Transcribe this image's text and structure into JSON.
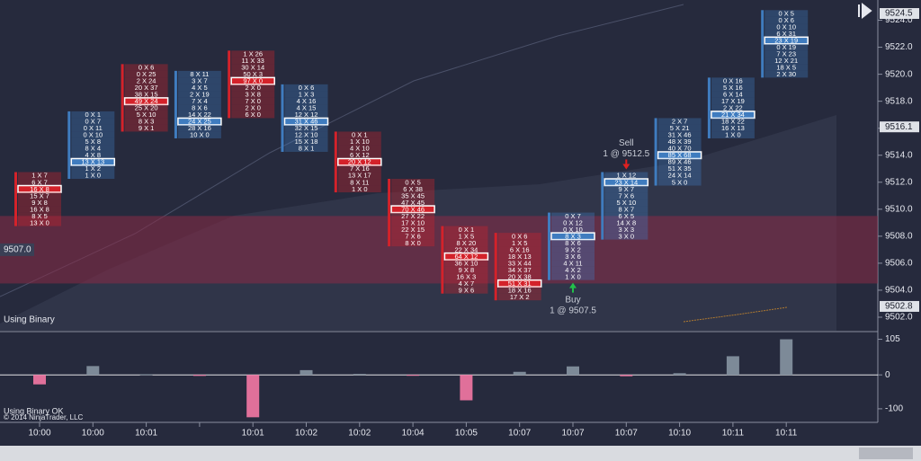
{
  "chart_data": {
    "type": "footprint",
    "ylim": [
      9501,
      9525.5
    ],
    "yticks": [
      {
        "value": 9502,
        "label": "9502.0"
      },
      {
        "value": 9504,
        "label": "9504.0"
      },
      {
        "value": 9506,
        "label": "9506.0"
      },
      {
        "value": 9508,
        "label": "9508.0"
      },
      {
        "value": 9510,
        "label": "9510.0"
      },
      {
        "value": 9512,
        "label": "9512.0"
      },
      {
        "value": 9514,
        "label": "9514.0"
      },
      {
        "value": 9516,
        "label": "9516.0"
      },
      {
        "value": 9518,
        "label": "9518.0"
      },
      {
        "value": 9520,
        "label": "9520.0"
      },
      {
        "value": 9522,
        "label": "9522.0"
      },
      {
        "value": 9524,
        "label": "9524.0"
      }
    ],
    "price_markers": [
      {
        "value": 9524.5,
        "label": "9524.5"
      },
      {
        "value": 9516.1,
        "label": "9516.1"
      },
      {
        "value": 9502.8,
        "label": "9502.8"
      }
    ],
    "left_marker": {
      "value": 9507,
      "label": "9507.0"
    },
    "zone": [
      9504.5,
      9509.5
    ],
    "zone_color": "#8a2a45",
    "categories": [
      "10:00",
      "10:00",
      "10:01",
      null,
      "10:01",
      "10:02",
      "10:02",
      "10:04",
      "10:05",
      "10:07",
      "10:07",
      "10:07",
      "10:10",
      "10:11",
      "10:11"
    ],
    "bars": [
      {
        "top": 9512.5,
        "highlight": 2,
        "color": "#d4222a",
        "cells": [
          "1 X 7",
          "6 X 7",
          "16 X 8",
          "15 X 7",
          "9 X 8",
          "16 X 8",
          "8 X 5",
          "13 X 0"
        ]
      },
      {
        "top": 9517,
        "highlight": 7,
        "color": "#3f7cbf",
        "cells": [
          "0 X 1",
          "0 X 7",
          "0 X 11",
          "0 X 10",
          "5 X 8",
          "8 X 4",
          "4 X 8",
          "13 X 13",
          "1 X 2",
          "1 X 0"
        ]
      },
      {
        "top": 9520.5,
        "highlight": 5,
        "color": "#d4222a",
        "cells": [
          "0 X 6",
          "0 X 25",
          "2 X 24",
          "20 X 37",
          "38 X 15",
          "49 X 24",
          "25 X 20",
          "5 X 10",
          "8 X 3",
          "9 X 1"
        ]
      },
      {
        "top": 9520,
        "highlight": 7,
        "color": "#3f7cbf",
        "cells": [
          "8 X 11",
          "3 X 7",
          "4 X 5",
          "2 X 19",
          "7 X 4",
          "8 X 6",
          "14 X 22",
          "24 X 25",
          "28 X 16",
          "10 X 0"
        ]
      },
      {
        "top": 9521.5,
        "highlight": 4,
        "color": "#d4222a",
        "cells": [
          "1 X 26",
          "11 X 33",
          "30 X 14",
          "50 X 3",
          "97 X 0",
          "2 X 0",
          "3 X 8",
          "7 X 0",
          "2 X 0",
          "6 X 0"
        ]
      },
      {
        "top": 9519,
        "highlight": 5,
        "color": "#3f7cbf",
        "cells": [
          "0 X 6",
          "1 X 3",
          "4 X 16",
          "4 X 15",
          "12 X 12",
          "31 X 46",
          "32 X 15",
          "12 X 10",
          "15 X 18",
          "8 X 1"
        ]
      },
      {
        "top": 9515.5,
        "highlight": 4,
        "color": "#d4222a",
        "cells": [
          "0 X 1",
          "1 X 10",
          "4 X 10",
          "6 X 12",
          "20 X 12",
          "7 X 16",
          "13 X 17",
          "8 X 11",
          "1 X 0"
        ]
      },
      {
        "top": 9512,
        "highlight": 4,
        "color": "#d4222a",
        "cells": [
          "0 X 5",
          "6 X 38",
          "35 X 45",
          "47 X 45",
          "70 X 46",
          "27 X 22",
          "17 X 10",
          "22 X 15",
          "7 X 6",
          "8 X 0"
        ]
      },
      {
        "top": 9508.5,
        "highlight": 4,
        "color": "#d4222a",
        "cells": [
          "0 X 1",
          "1 X 5",
          "8 X 20",
          "22 X 34",
          "64 X 12",
          "36 X 10",
          "9 X 8",
          "16 X 3",
          "4 X 7",
          "9 X 6"
        ]
      },
      {
        "top": 9508,
        "highlight": 7,
        "color": "#d4222a",
        "cells": [
          "0 X 6",
          "1 X 5",
          "6 X 16",
          "18 X 13",
          "33 X 44",
          "34 X 37",
          "20 X 38",
          "51 X 31",
          "18 X 16",
          "17 X 2"
        ]
      },
      {
        "top": 9509.5,
        "highlight": 3,
        "color": "#3f7cbf",
        "cells": [
          "0 X 7",
          "0 X 12",
          "0 X 10",
          "8 X 3",
          "8 X 6",
          "9 X 2",
          "3 X 6",
          "4 X 11",
          "4 X 2",
          "1 X 0"
        ],
        "annotation": {
          "label": "Buy",
          "text": "1 @ 9507.5",
          "position": "below",
          "arrow_color": "#22c04a"
        }
      },
      {
        "top": 9512.5,
        "highlight": 1,
        "color": "#3f7cbf",
        "cells": [
          "1 X 12",
          "23 X 14",
          "9 X 7",
          "7 X 6",
          "5 X 10",
          "8 X 7",
          "6 X 5",
          "14 X 8",
          "3 X 3",
          "3 X 0"
        ],
        "annotation": {
          "label": "Sell",
          "text": "1 @ 9512.5",
          "position": "above",
          "arrow_color": "#e02020"
        }
      },
      {
        "top": 9516.5,
        "highlight": 5,
        "color": "#3f7cbf",
        "cells": [
          "2 X 7",
          "5 X 21",
          "31 X 46",
          "48 X 39",
          "40 X 70",
          "85 X 68",
          "89 X 46",
          "51 X 35",
          "24 X 14",
          "5 X 0"
        ]
      },
      {
        "top": 9519.5,
        "highlight": 5,
        "color": "#3f7cbf",
        "cells": [
          "0 X 16",
          "5 X 16",
          "6 X 14",
          "17 X 19",
          "2 X 22",
          "21 X 34",
          "18 X 22",
          "16 X 13",
          "1 X 0"
        ]
      },
      {
        "top": 9524.5,
        "highlight": 4,
        "color": "#3f7cbf",
        "cells": [
          "0 X 5",
          "0 X 6",
          "0 X 10",
          "6 X 31",
          "23 X 19",
          "0 X 19",
          "7 X 23",
          "12 X 21",
          "18 X 5",
          "2 X 30"
        ]
      }
    ],
    "delta": {
      "ylim": [
        -140,
        125
      ],
      "yticks": [
        105,
        0,
        -100
      ],
      "up_color": "#7d8a98",
      "down_color": "#e0709a",
      "values": [
        -28,
        26,
        2,
        -3,
        -125,
        14,
        3,
        -1,
        -75,
        9,
        25,
        -4,
        5,
        55,
        105
      ]
    },
    "indicator_label": "Using Binary",
    "status": "Using Binary OK",
    "copyright": "© 2014 NinjaTrader, LLC"
  }
}
